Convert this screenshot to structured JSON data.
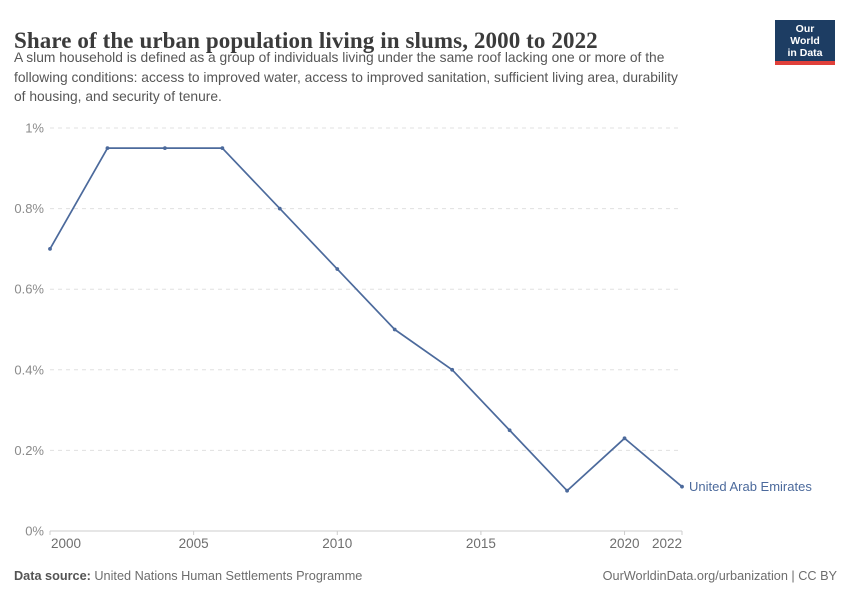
{
  "header": {
    "title": "Share of the urban population living in slums, 2000 to 2022",
    "subtitle_lines": [
      "A slum household is defined as a group of individuals living under the same roof lacking one or more of the",
      "following conditions: access to improved water, access to improved sanitation, sufficient living area, durability",
      "of housing, and security of tenure."
    ],
    "logo": {
      "line1": "Our World",
      "line2": "in Data",
      "bg_color": "#1d3d63",
      "accent_color": "#e0403a"
    }
  },
  "chart_data": {
    "type": "line",
    "title": "Share of the urban population living in slums, 2000 to 2022",
    "x": [
      2000,
      2002,
      2004,
      2006,
      2008,
      2010,
      2012,
      2014,
      2016,
      2018,
      2020,
      2022
    ],
    "series": [
      {
        "name": "United Arab Emirates",
        "color": "#4c6a9c",
        "values": [
          0.7,
          0.95,
          0.95,
          0.95,
          0.8,
          0.65,
          0.5,
          0.4,
          0.25,
          0.1,
          0.23,
          0.11
        ]
      }
    ],
    "unit": "%",
    "xlabel": "",
    "ylabel": "",
    "xlim": [
      2000,
      2022
    ],
    "ylim": [
      0,
      1
    ],
    "grid": "horizontal-dashed",
    "legend_position": "end-of-line-label",
    "y_ticks": [
      {
        "value": 0,
        "label": "0%"
      },
      {
        "value": 0.2,
        "label": "0.2%"
      },
      {
        "value": 0.4,
        "label": "0.4%"
      },
      {
        "value": 0.6,
        "label": "0.6%"
      },
      {
        "value": 0.8,
        "label": "0.8%"
      },
      {
        "value": 1,
        "label": "1%"
      }
    ],
    "x_ticks": [
      {
        "value": 2000,
        "label": "2000",
        "anchor": "start"
      },
      {
        "value": 2005,
        "label": "2005",
        "anchor": "middle"
      },
      {
        "value": 2010,
        "label": "2010",
        "anchor": "middle"
      },
      {
        "value": 2015,
        "label": "2015",
        "anchor": "middle"
      },
      {
        "value": 2020,
        "label": "2020",
        "anchor": "middle"
      },
      {
        "value": 2022,
        "label": "2022",
        "anchor": "end"
      }
    ]
  },
  "colors": {
    "line": "#4c6a9c",
    "grid": "#e0e0e0",
    "axis": "#cccccc",
    "y_tick_text": "#8a8a8a",
    "x_tick_text": "#6e6e6e"
  },
  "footer": {
    "datasource_label": "Data source:",
    "datasource_value": " United Nations Human Settlements Programme",
    "attribution": "OurWorldinData.org/urbanization | CC BY"
  }
}
